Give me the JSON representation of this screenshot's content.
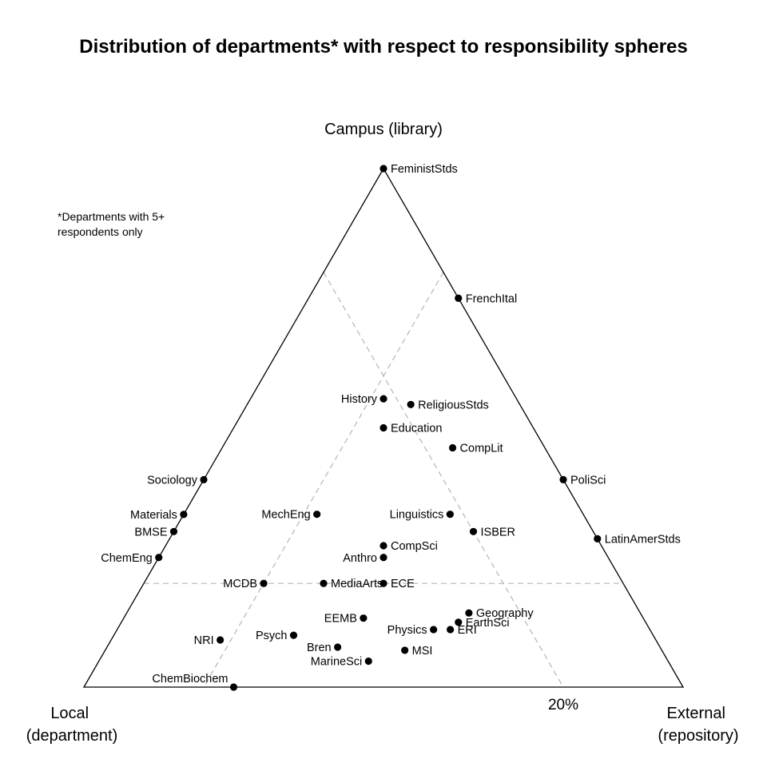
{
  "chart_data": {
    "type": "scatter",
    "subtype": "ternary",
    "title": "Distribution of departments* with respect to responsibility spheres",
    "footnote": [
      "*Departments with 5+",
      "respondents only"
    ],
    "vertices": {
      "top": [
        "Campus (library)"
      ],
      "left": [
        "Local",
        "(department)"
      ],
      "right": [
        "External",
        "(repository)"
      ]
    },
    "reference_lines": {
      "style": "dashed",
      "color": "#b5b5b5",
      "label": "20%",
      "fraction": 0.2
    },
    "colors": {
      "points": "#000000",
      "triangle": "#000000",
      "reference": "#b5b5b5"
    },
    "points": [
      {
        "name": "FeministStds",
        "campus": 1.0,
        "local": 0.0,
        "external": 0.0,
        "label_side": "right"
      },
      {
        "name": "FrenchItal",
        "campus": 0.75,
        "local": 0.0,
        "external": 0.25,
        "label_side": "right"
      },
      {
        "name": "History",
        "campus": 0.556,
        "local": 0.222,
        "external": 0.222,
        "label_side": "left"
      },
      {
        "name": "ReligiousStds",
        "campus": 0.545,
        "local": 0.182,
        "external": 0.273,
        "label_side": "right"
      },
      {
        "name": "Education",
        "campus": 0.5,
        "local": 0.25,
        "external": 0.25,
        "label_side": "right"
      },
      {
        "name": "CompLit",
        "campus": 0.462,
        "local": 0.154,
        "external": 0.385,
        "label_side": "right"
      },
      {
        "name": "Sociology",
        "campus": 0.4,
        "local": 0.6,
        "external": 0.0,
        "label_side": "left"
      },
      {
        "name": "PoliSci",
        "campus": 0.4,
        "local": 0.0,
        "external": 0.6,
        "label_side": "right"
      },
      {
        "name": "Materials",
        "campus": 0.333,
        "local": 0.667,
        "external": 0.0,
        "label_side": "left"
      },
      {
        "name": "MechEng",
        "campus": 0.333,
        "local": 0.444,
        "external": 0.222,
        "label_side": "left"
      },
      {
        "name": "Linguistics",
        "campus": 0.333,
        "local": 0.222,
        "external": 0.444,
        "label_side": "left"
      },
      {
        "name": "ISBER",
        "campus": 0.3,
        "local": 0.2,
        "external": 0.5,
        "label_side": "right"
      },
      {
        "name": "BMSE",
        "campus": 0.3,
        "local": 0.7,
        "external": 0.0,
        "label_side": "left"
      },
      {
        "name": "LatinAmerStds",
        "campus": 0.286,
        "local": 0.0,
        "external": 0.714,
        "label_side": "right"
      },
      {
        "name": "CompSci",
        "campus": 0.273,
        "local": 0.364,
        "external": 0.364,
        "label_side": "right"
      },
      {
        "name": "Anthro",
        "campus": 0.25,
        "local": 0.375,
        "external": 0.375,
        "label_side": "left"
      },
      {
        "name": "ChemEng",
        "campus": 0.25,
        "local": 0.75,
        "external": 0.0,
        "label_side": "left"
      },
      {
        "name": "MediaArts",
        "campus": 0.2,
        "local": 0.5,
        "external": 0.3,
        "label_side": "right"
      },
      {
        "name": "MCDB",
        "campus": 0.2,
        "local": 0.6,
        "external": 0.2,
        "label_side": "left"
      },
      {
        "name": "ECE",
        "campus": 0.2,
        "local": 0.4,
        "external": 0.4,
        "label_side": "right"
      },
      {
        "name": "Geography",
        "campus": 0.143,
        "local": 0.286,
        "external": 0.571,
        "label_side": "right"
      },
      {
        "name": "EarthSci",
        "campus": 0.125,
        "local": 0.3125,
        "external": 0.5625,
        "label_side": "right"
      },
      {
        "name": "EEMB",
        "campus": 0.133,
        "local": 0.467,
        "external": 0.4,
        "label_side": "left"
      },
      {
        "name": "ERI",
        "campus": 0.111,
        "local": 0.333,
        "external": 0.556,
        "label_side": "right"
      },
      {
        "name": "Physics",
        "campus": 0.111,
        "local": 0.361,
        "external": 0.528,
        "label_side": "left"
      },
      {
        "name": "Psych",
        "campus": 0.1,
        "local": 0.6,
        "external": 0.3,
        "label_side": "left"
      },
      {
        "name": "NRI",
        "campus": 0.091,
        "local": 0.727,
        "external": 0.182,
        "label_side": "left"
      },
      {
        "name": "Bren",
        "campus": 0.077,
        "local": 0.538,
        "external": 0.385,
        "label_side": "left"
      },
      {
        "name": "MSI",
        "campus": 0.071,
        "local": 0.429,
        "external": 0.5,
        "label_side": "right"
      },
      {
        "name": "MarineSci",
        "campus": 0.05,
        "local": 0.5,
        "external": 0.45,
        "label_side": "left"
      },
      {
        "name": "ChemBiochem",
        "campus": 0.0,
        "local": 0.75,
        "external": 0.25,
        "label_side": "above-left"
      }
    ]
  }
}
